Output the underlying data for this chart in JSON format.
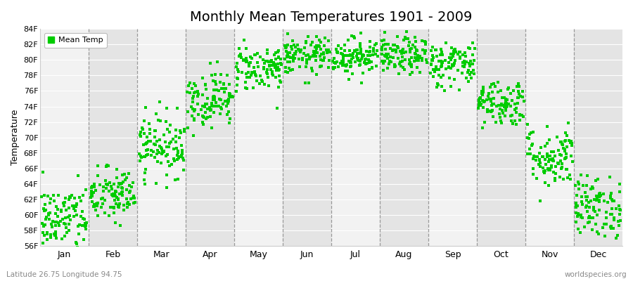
{
  "title": "Monthly Mean Temperatures 1901 - 2009",
  "ylabel": "Temperature",
  "ylim": [
    56,
    84
  ],
  "yticks": [
    56,
    58,
    60,
    62,
    64,
    66,
    68,
    70,
    72,
    74,
    76,
    78,
    80,
    82,
    84
  ],
  "ytick_labels": [
    "56F",
    "58F",
    "60F",
    "62F",
    "64F",
    "66F",
    "68F",
    "70F",
    "72F",
    "74F",
    "76F",
    "78F",
    "80F",
    "82F",
    "84F"
  ],
  "month_names": [
    "Jan",
    "Feb",
    "Mar",
    "Apr",
    "May",
    "Jun",
    "Jul",
    "Aug",
    "Sep",
    "Oct",
    "Nov",
    "Dec"
  ],
  "marker_color": "#00cc00",
  "legend_label": "Mean Temp",
  "bottom_left": "Latitude 26.75 Longitude 94.75",
  "bottom_right": "worldspecies.org",
  "background_color": "#ffffff",
  "band_color_light": "#f2f2f2",
  "band_color_dark": "#e4e4e4",
  "monthly_means": [
    59.5,
    62.5,
    69.0,
    75.0,
    79.0,
    80.5,
    80.5,
    80.5,
    79.5,
    74.5,
    67.5,
    61.0
  ],
  "monthly_spreads": [
    2.2,
    1.8,
    2.0,
    1.8,
    1.5,
    1.2,
    1.2,
    1.2,
    1.5,
    1.5,
    2.0,
    2.0
  ],
  "n_years": 109,
  "seed": 42,
  "title_fontsize": 14,
  "axis_fontsize": 9,
  "tick_fontsize": 8
}
